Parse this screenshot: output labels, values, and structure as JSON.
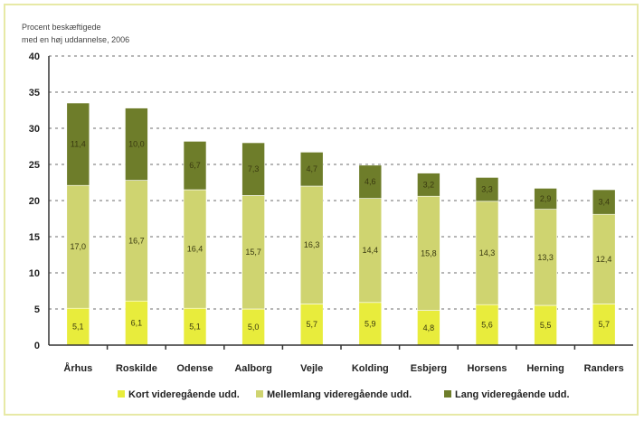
{
  "chart_data": {
    "type": "bar",
    "stacked": true,
    "ylabel_lines": [
      "Procent beskæftigede",
      "med en høj uddannelse, 2006"
    ],
    "ylim": [
      0,
      40
    ],
    "yticks": [
      0,
      5,
      10,
      15,
      20,
      25,
      30,
      35,
      40
    ],
    "grid": true,
    "legend_position": "bottom",
    "categories": [
      "Århus",
      "Roskilde",
      "Odense",
      "Aalborg",
      "Vejle",
      "Kolding",
      "Esbjerg",
      "Horsens",
      "Herning",
      "Randers"
    ],
    "series": [
      {
        "name": "Kort videregående udd.",
        "color": "#e8ec3c",
        "values": [
          5.1,
          6.1,
          5.1,
          5.0,
          5.7,
          5.9,
          4.8,
          5.6,
          5.5,
          5.7
        ],
        "labels": [
          "5,1",
          "6,1",
          "5,1",
          "5,0",
          "5,7",
          "5,9",
          "4,8",
          "5,6",
          "5,5",
          "5,7"
        ]
      },
      {
        "name": "Mellemlang videregående udd.",
        "color": "#cfd470",
        "values": [
          17.0,
          16.7,
          16.4,
          15.7,
          16.3,
          14.4,
          15.8,
          14.3,
          13.3,
          12.4
        ],
        "labels": [
          "17,0",
          "16,7",
          "16,4",
          "15,7",
          "16,3",
          "14,4",
          "15,8",
          "14,3",
          "13,3",
          "12,4"
        ]
      },
      {
        "name": "Lang videregående udd.",
        "color": "#6e7d2a",
        "values": [
          11.4,
          10.0,
          6.7,
          7.3,
          4.7,
          4.6,
          3.2,
          3.3,
          2.9,
          3.4
        ],
        "labels": [
          "11,4",
          "10,0",
          "6,7",
          "7,3",
          "4,7",
          "4,6",
          "3,2",
          "3,3",
          "2,9",
          "3,4"
        ]
      }
    ]
  }
}
